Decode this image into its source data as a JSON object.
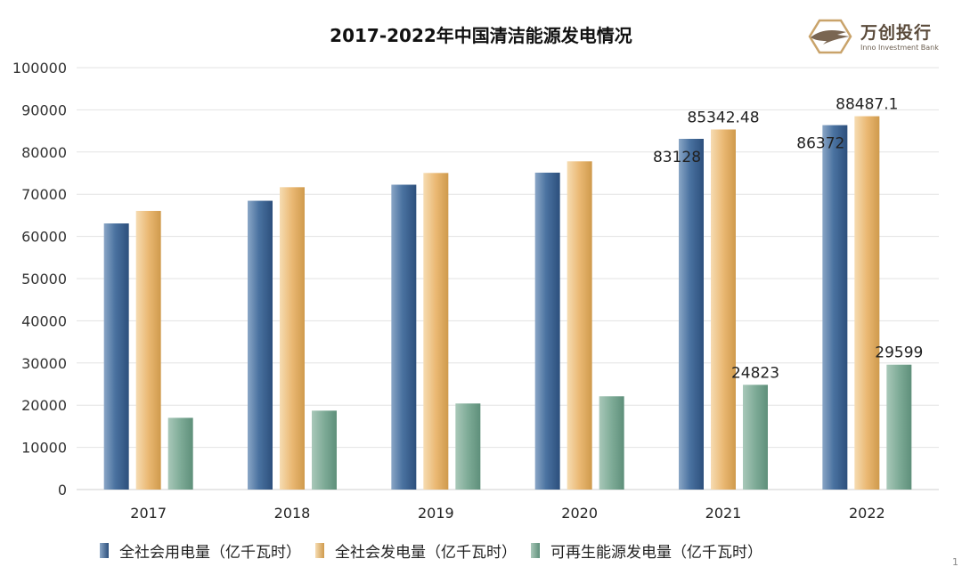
{
  "title": "2017-2022年中国清洁能源发电情况",
  "logo": {
    "brand": "万创投行",
    "subtitle": "Inno Investment Bank"
  },
  "page_number": "1",
  "colors": {
    "consumption": "#3f6694",
    "generation": "#e7b466",
    "renewable": "#79a893",
    "grid": "#e3e3e3"
  },
  "chart_data": {
    "type": "bar",
    "title": "2017-2022年中国清洁能源发电情况",
    "categories": [
      "2017",
      "2018",
      "2019",
      "2020",
      "2021",
      "2022"
    ],
    "series": [
      {
        "name": "全社会用电量（亿千瓦时）",
        "values": [
          63077,
          68449,
          72255,
          75110,
          83128,
          86372
        ],
        "labels": [
          "",
          "",
          "",
          "",
          "83128",
          "86372"
        ]
      },
      {
        "name": "全社会发电量（亿千瓦时）",
        "values": [
          66044,
          71661,
          75034,
          77791,
          85342.48,
          88487.1
        ],
        "labels": [
          "",
          "",
          "",
          "",
          "85342.48",
          "88487.1"
        ]
      },
      {
        "name": "可再生能源发电量（亿千瓦时）",
        "values": [
          17000,
          18700,
          20400,
          22100,
          24823,
          29599
        ],
        "labels": [
          "",
          "",
          "",
          "",
          "24823",
          "29599"
        ]
      }
    ],
    "ylim": [
      0,
      100000
    ],
    "yticks": [
      0,
      10000,
      20000,
      30000,
      40000,
      50000,
      60000,
      70000,
      80000,
      90000,
      100000
    ],
    "grid": true,
    "legend": "bottom"
  }
}
